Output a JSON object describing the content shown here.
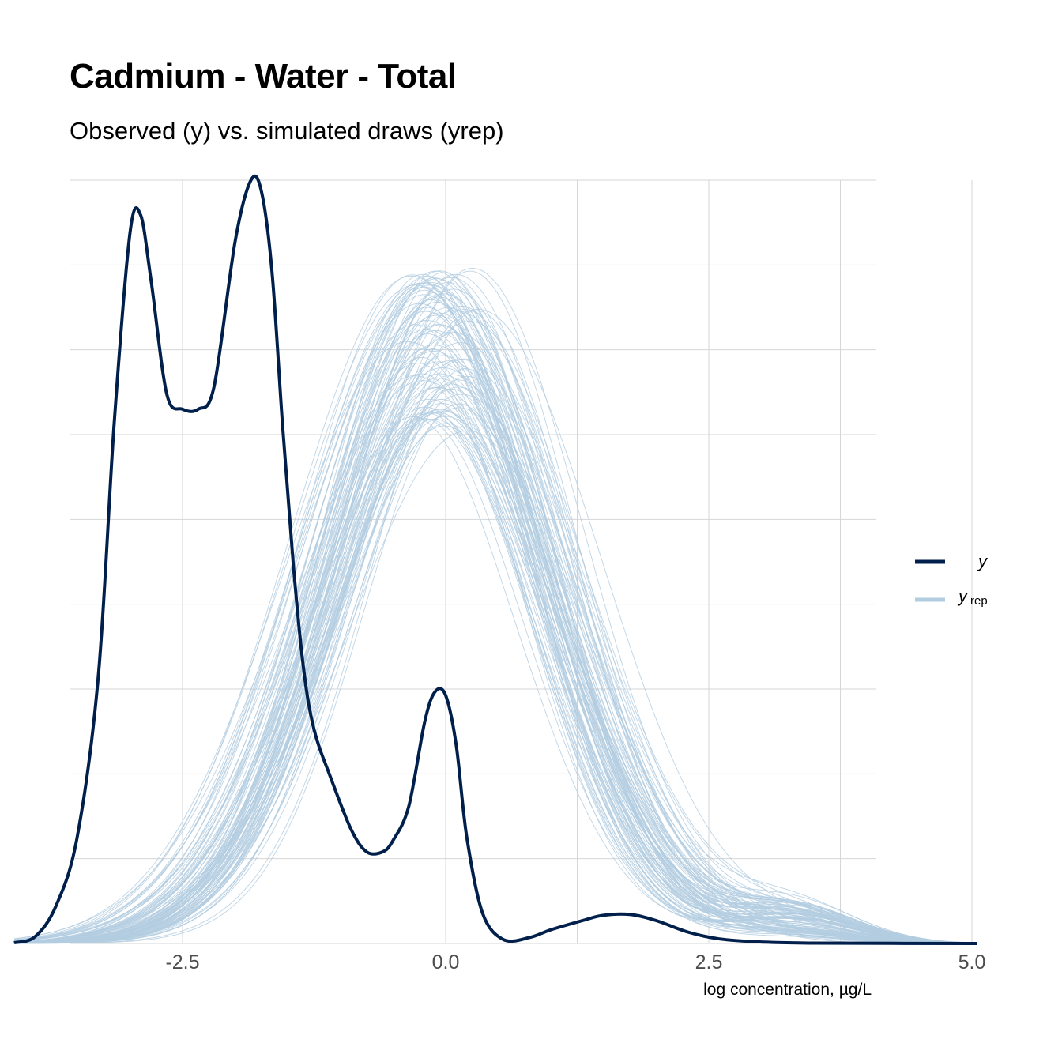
{
  "chart_data": {
    "type": "line",
    "title": "Cadmium - Water - Total",
    "subtitle": "Observed (y) vs. simulated draws (yrep)",
    "xlabel": "log concentration, µg/L",
    "ylabel": "",
    "xlim": [
      -4.1,
      5.05
    ],
    "ylim": [
      0,
      1
    ],
    "x_ticks": [
      -2.5,
      0.0,
      2.5,
      5.0
    ],
    "x_tick_labels": [
      "-2.5",
      "0.0",
      "2.5",
      "5.0"
    ],
    "grid": true,
    "legend_position": "right",
    "colors": {
      "y": "#011f4b",
      "yrep": "#b3cde0",
      "grid": "#d6d6d6"
    },
    "series": [
      {
        "name": "y",
        "x": [
          -4.1,
          -3.9,
          -3.7,
          -3.5,
          -3.3,
          -3.15,
          -3.0,
          -2.9,
          -2.8,
          -2.65,
          -2.5,
          -2.35,
          -2.2,
          -2.0,
          -1.85,
          -1.75,
          -1.65,
          -1.55,
          -1.45,
          -1.35,
          -1.25,
          -1.1,
          -0.9,
          -0.75,
          -0.6,
          -0.5,
          -0.35,
          -0.2,
          -0.1,
          0.0,
          0.1,
          0.2,
          0.35,
          0.55,
          0.8,
          1.0,
          1.3,
          1.5,
          1.75,
          2.0,
          2.3,
          2.6,
          3.0,
          3.5,
          5.05
        ],
        "values": [
          0.001,
          0.009,
          0.05,
          0.14,
          0.35,
          0.68,
          0.93,
          0.955,
          0.87,
          0.72,
          0.7,
          0.7,
          0.73,
          0.92,
          1.0,
          0.985,
          0.88,
          0.68,
          0.5,
          0.36,
          0.28,
          0.22,
          0.15,
          0.12,
          0.12,
          0.135,
          0.18,
          0.29,
          0.33,
          0.325,
          0.26,
          0.14,
          0.04,
          0.005,
          0.008,
          0.018,
          0.03,
          0.037,
          0.038,
          0.03,
          0.015,
          0.006,
          0.002,
          0.0005,
          0.0
        ]
      },
      {
        "name": "yrep",
        "draws": 100,
        "shape": "unimodal density, roughly normal, mean ≈ 0, sd ≈ 1.0–1.2, peak heights ≈ 0.67–0.9"
      }
    ]
  },
  "legend": {
    "y_label": "y",
    "yrep_label": "y",
    "yrep_sub": "rep"
  }
}
